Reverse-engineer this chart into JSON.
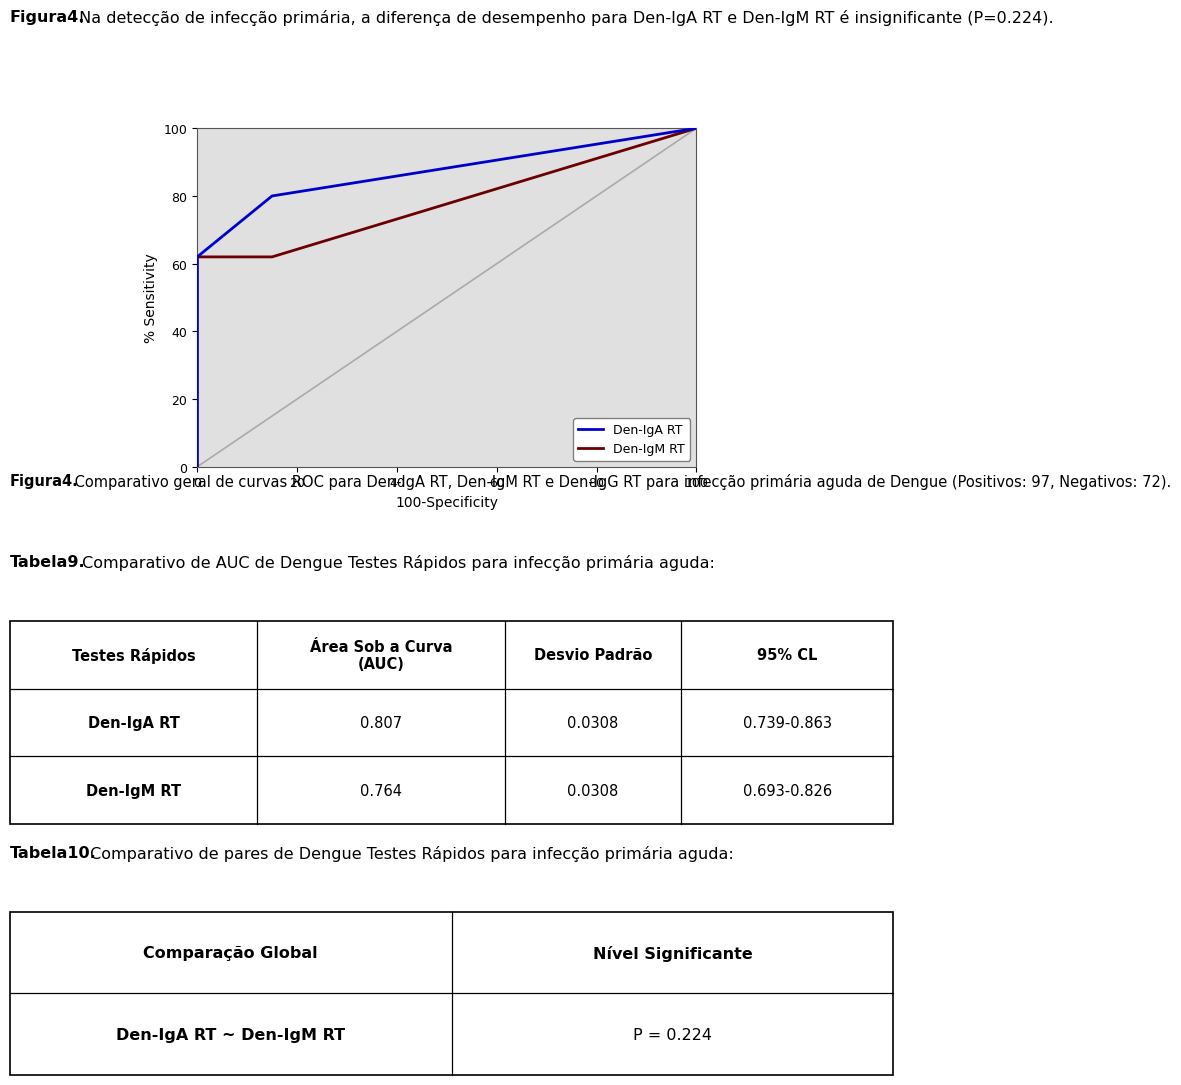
{
  "title_bold": "Figura4.",
  "title_body": " Na detecção de infecção primária, a diferença de desempenho para Den-IgA RT e Den-IgM RT é insignificante (P=0.224).",
  "fig_caption_bold": "Figura4.",
  "fig_caption_body": " Comparativo geral de curvas ROC para Den-IgA RT, Den-IgM RT e Den-IgG RT para infecção primária aguda de Dengue (Positivos: 97, Negativos: 72).",
  "iga_color": "#0000cc",
  "igm_color": "#6b0000",
  "diag_color": "#aaaaaa",
  "xlabel": "100-Specificity",
  "ylabel": "% Sensitivity",
  "xticks": [
    0,
    20,
    40,
    60,
    80,
    100
  ],
  "yticks": [
    0,
    20,
    40,
    60,
    80,
    100
  ],
  "legend_labels": [
    "Den-IgA RT",
    "Den-IgM RT"
  ],
  "table9_title_bold": "Tabela9.",
  "table9_title_body": " Comparativo de AUC de Dengue Testes Rápidos para infecção primária aguda:",
  "table9_headers": [
    "Testes Rápidos",
    "Área Sob a Curva\n(AUC)",
    "Desvio Padrão",
    "95% CL"
  ],
  "table9_rows": [
    [
      "Den-IgA RT",
      "0.807",
      "0.0308",
      "0.739-0.863"
    ],
    [
      "Den-IgM RT",
      "0.764",
      "0.0308",
      "0.693-0.826"
    ]
  ],
  "table10_title_bold": "Tabela10.",
  "table10_title_body": " Comparativo de pares de Dengue Testes Rápidos para infecção primária aguda:",
  "table10_headers": [
    "Comparação Global",
    "Nível Significante"
  ],
  "table10_rows": [
    [
      "Den-IgA RT ~ Den-IgM RT",
      "P = 0.224"
    ]
  ],
  "bg_color": "#ffffff",
  "text_color": "#000000",
  "plot_bg": "#e0e0e0"
}
